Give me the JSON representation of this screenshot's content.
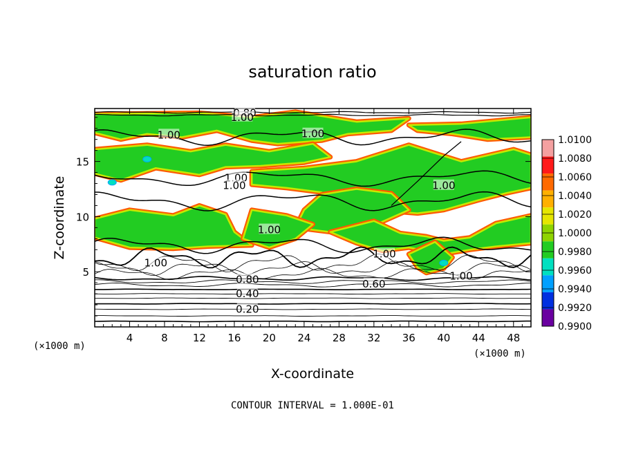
{
  "chart_data": {
    "type": "heatmap",
    "title": "saturation ratio",
    "xlabel": "X-coordinate",
    "ylabel": "Z-coordinate",
    "x_unit_left": "(×1000 m)",
    "x_unit_right": "(×1000 m)",
    "xlim": [
      0,
      50
    ],
    "ylim": [
      0,
      19.8
    ],
    "x_ticks": [
      4,
      8,
      12,
      16,
      20,
      24,
      28,
      32,
      36,
      40,
      44,
      48
    ],
    "y_ticks": [
      5,
      10,
      15
    ],
    "colorbar": {
      "labels": [
        "1.0100",
        "1.0080",
        "1.0060",
        "1.0040",
        "1.0020",
        "1.0000",
        "0.9980",
        "0.9960",
        "0.9940",
        "0.9920",
        "0.9900"
      ],
      "colors": [
        "#f4a0a0",
        "#ff1a1a",
        "#ff6a00",
        "#ffb000",
        "#e6e600",
        "#8fd400",
        "#22cc22",
        "#00e0c0",
        "#00a0ff",
        "#0030e0",
        "#6a00a0"
      ]
    },
    "contour_labels": [
      {
        "text": "0.80",
        "x": 17.2,
        "y": 19.4
      },
      {
        "text": "1.00",
        "x": 16.9,
        "y": 19.0
      },
      {
        "text": "1.00",
        "x": 8.5,
        "y": 17.4
      },
      {
        "text": "1.00",
        "x": 25.0,
        "y": 17.5
      },
      {
        "text": "1.00",
        "x": 16.2,
        "y": 13.5
      },
      {
        "text": "1.00",
        "x": 16.0,
        "y": 12.8
      },
      {
        "text": "1.00",
        "x": 40.0,
        "y": 12.8
      },
      {
        "text": "1.00",
        "x": 20.0,
        "y": 8.8
      },
      {
        "text": "1.00",
        "x": 33.2,
        "y": 6.6
      },
      {
        "text": "1.00",
        "x": 7.0,
        "y": 5.8
      },
      {
        "text": "1.00",
        "x": 42.0,
        "y": 4.6
      },
      {
        "text": "0.80",
        "x": 17.5,
        "y": 4.3
      },
      {
        "text": "0.60",
        "x": 32.0,
        "y": 3.9
      },
      {
        "text": "0.40",
        "x": 17.5,
        "y": 3.0
      },
      {
        "text": "0.20",
        "x": 17.5,
        "y": 1.6
      }
    ],
    "contour_interval_text": "CONTOUR INTERVAL = 1.000E-01"
  }
}
